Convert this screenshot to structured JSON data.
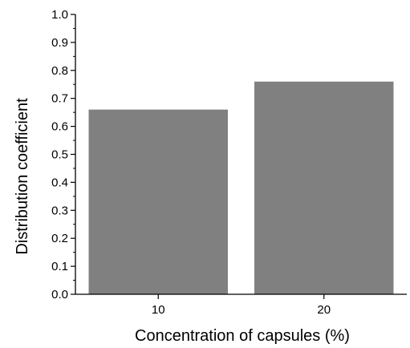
{
  "chart_data": {
    "type": "bar",
    "title": "",
    "xlabel": "Concentration of capsules (%)",
    "ylabel": "Distribution coefficient",
    "categories": [
      "10",
      "20"
    ],
    "values": [
      0.66,
      0.76
    ],
    "ylim": [
      0,
      1.0
    ],
    "yticks": [
      "0.0",
      "0.1",
      "0.2",
      "0.3",
      "0.4",
      "0.5",
      "0.6",
      "0.7",
      "0.8",
      "0.9",
      "1.0"
    ],
    "grid": false,
    "legend": "none",
    "bar_color": "#808080",
    "axis_color": "#000000"
  }
}
